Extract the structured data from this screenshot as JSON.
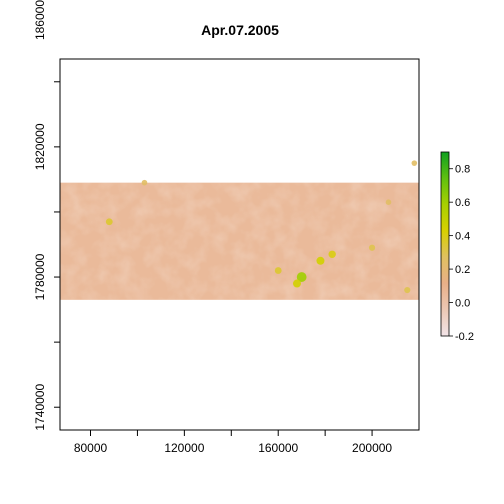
{
  "chart_data": {
    "type": "heatmap",
    "title": "Apr.07.2005",
    "xlabel": "",
    "ylabel": "",
    "xlim": [
      67000,
      220000
    ],
    "ylim": [
      1733000,
      1847000
    ],
    "x_ticks": [
      80000,
      100000,
      120000,
      140000,
      160000,
      180000,
      200000
    ],
    "x_tick_labels": [
      "80000",
      "120000",
      "160000",
      "200000"
    ],
    "y_ticks": [
      1740000,
      1760000,
      1780000,
      1800000,
      1820000,
      1840000,
      1860000
    ],
    "y_tick_labels": [
      "1740000",
      "1780000",
      "1820000",
      "1860000"
    ],
    "raster_extent": {
      "x": [
        67000,
        220000
      ],
      "y": [
        1773000,
        1809000
      ]
    },
    "colorbar": {
      "range": [
        -0.2,
        0.9
      ],
      "ticks": [
        -0.2,
        0.0,
        0.2,
        0.4,
        0.6,
        0.8
      ],
      "tick_labels": [
        "-0.2",
        "0.0",
        "0.2",
        "0.4",
        "0.6",
        "0.8"
      ],
      "colors": [
        "#f2e4e8",
        "#ecc8b4",
        "#e8b088",
        "#e0c060",
        "#d8d000",
        "#a8d000",
        "#60c010",
        "#10a020"
      ]
    },
    "dominant_value": 0.05,
    "hotspots": [
      {
        "x": 170000,
        "y": 1780000,
        "value": 0.6
      },
      {
        "x": 178000,
        "y": 1785000,
        "value": 0.45
      },
      {
        "x": 183000,
        "y": 1787000,
        "value": 0.4
      },
      {
        "x": 168000,
        "y": 1778000,
        "value": 0.45
      },
      {
        "x": 160000,
        "y": 1782000,
        "value": 0.35
      },
      {
        "x": 88000,
        "y": 1797000,
        "value": 0.35
      },
      {
        "x": 200000,
        "y": 1789000,
        "value": 0.3
      },
      {
        "x": 215000,
        "y": 1776000,
        "value": 0.3
      },
      {
        "x": 103000,
        "y": 1809000,
        "value": 0.25
      },
      {
        "x": 207000,
        "y": 1803000,
        "value": 0.25
      },
      {
        "x": 218000,
        "y": 1815000,
        "value": 0.25
      }
    ]
  }
}
